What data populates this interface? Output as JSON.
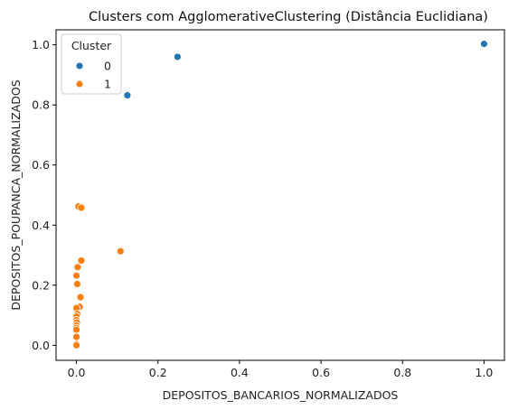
{
  "chart_data": {
    "type": "scatter",
    "title": "Clusters com AgglomerativeClustering (Distância Euclidiana)",
    "xlabel": "DEPOSITOS_BANCARIOS_NORMALIZADOS",
    "ylabel": "DEPOSITOS_POUPANCA_NORMALIZADOS",
    "xlim": [
      -0.05,
      1.05
    ],
    "ylim": [
      -0.05,
      1.05
    ],
    "xticks": [
      "0.0",
      "0.2",
      "0.4",
      "0.6",
      "0.8",
      "1.0"
    ],
    "yticks": [
      "0.0",
      "0.2",
      "0.4",
      "0.6",
      "0.8",
      "1.0"
    ],
    "grid": false,
    "legend": {
      "title": "Cluster",
      "placement": "top-left"
    },
    "series": [
      {
        "name": "0",
        "color": "#1f77b4",
        "points": [
          [
            0.125,
            0.832
          ],
          [
            0.248,
            0.96
          ],
          [
            1.0,
            1.003
          ]
        ]
      },
      {
        "name": "1",
        "color": "#ff7f0e",
        "points": [
          [
            0.005,
            0.462
          ],
          [
            0.012,
            0.458
          ],
          [
            0.108,
            0.313
          ],
          [
            0.012,
            0.282
          ],
          [
            0.003,
            0.26
          ],
          [
            0.0,
            0.232
          ],
          [
            0.002,
            0.204
          ],
          [
            0.01,
            0.16
          ],
          [
            0.008,
            0.128
          ],
          [
            0.0,
            0.124
          ],
          [
            0.002,
            0.104
          ],
          [
            0.0,
            0.096
          ],
          [
            0.0,
            0.084
          ],
          [
            0.001,
            0.076
          ],
          [
            0.0,
            0.066
          ],
          [
            0.0,
            0.058
          ],
          [
            0.0,
            0.052
          ],
          [
            0.0,
            0.028
          ],
          [
            0.0,
            0.004
          ],
          [
            0.0,
            0.0
          ]
        ]
      }
    ]
  }
}
